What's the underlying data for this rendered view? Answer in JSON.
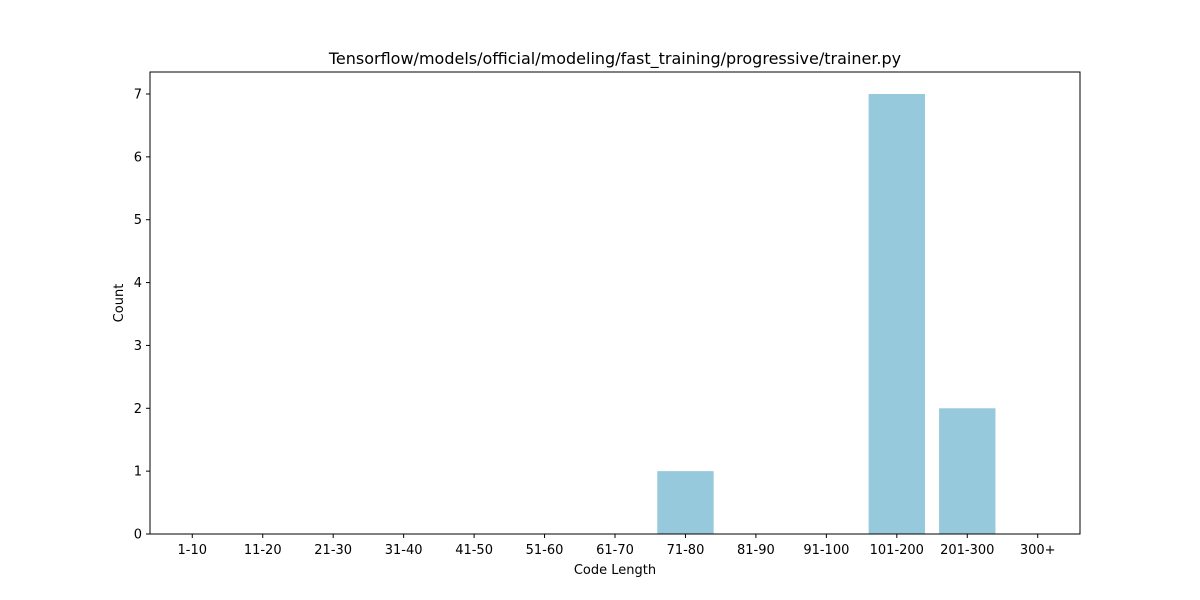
{
  "chart_data": {
    "type": "bar",
    "title": "Tensorflow/models/official/modeling/fast_training/progressive/trainer.py",
    "xlabel": "Code Length",
    "ylabel": "Count",
    "categories": [
      "1-10",
      "11-20",
      "21-30",
      "31-40",
      "41-50",
      "51-60",
      "61-70",
      "71-80",
      "81-90",
      "91-100",
      "101-200",
      "201-300",
      "300+"
    ],
    "values": [
      0,
      0,
      0,
      0,
      0,
      0,
      0,
      1,
      0,
      0,
      7,
      2,
      0
    ],
    "ylim": [
      0,
      7.35
    ],
    "yticks": [
      0,
      1,
      2,
      3,
      4,
      5,
      6,
      7
    ],
    "grid": false,
    "legend": "none",
    "bar_color": "#96c9dc"
  }
}
